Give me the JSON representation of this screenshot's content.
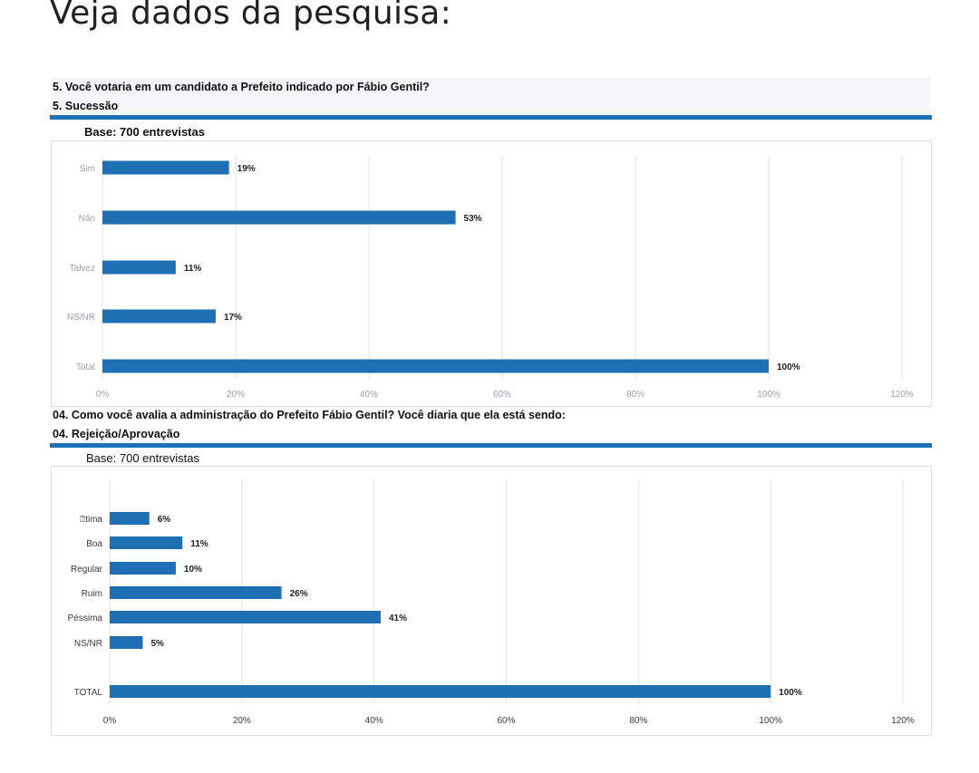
{
  "page": {
    "headline": "Veja dados da pesquisa:"
  },
  "chart_data": [
    {
      "type": "bar",
      "orientation": "horizontal",
      "question": "5. Você votaria em um candidato a Prefeito indicado por Fábio Gentil?",
      "section": "5. Sucessão",
      "base": "Base: 700 entrevistas",
      "categories": [
        "Sim",
        "Não",
        "Talvez",
        "NS/NR",
        "Total"
      ],
      "values": [
        19,
        53,
        11,
        17,
        100
      ],
      "value_labels": [
        "19%",
        "53%",
        "11%",
        "17%",
        "100%"
      ],
      "x_ticks": [
        "0%",
        "20%",
        "40%",
        "60%",
        "80%",
        "100%",
        "120%"
      ],
      "xlim": [
        0,
        120
      ],
      "grid": true,
      "bar_color": "#1f6fb5"
    },
    {
      "type": "bar",
      "orientation": "horizontal",
      "question": "04. Como você avalia a administração do Prefeito Fábio Gentil? Você diaria que ela está sendo:",
      "section": "04. Rejeição/Aprovação",
      "base": "Base: 700 entrevistas",
      "categories": [
        "⍰tima",
        "Boa",
        "Regular",
        "Ruim",
        "Péssima",
        "NS/NR",
        "TOTAL"
      ],
      "values": [
        6,
        11,
        10,
        26,
        41,
        5,
        100
      ],
      "value_labels": [
        "6%",
        "11%",
        "10%",
        "26%",
        "41%",
        "5%",
        "100%"
      ],
      "x_ticks": [
        "0%",
        "20%",
        "40%",
        "60%",
        "80%",
        "100%",
        "120%"
      ],
      "xlim": [
        0,
        120
      ],
      "grid": true,
      "bar_color": "#1f6fb5"
    }
  ]
}
